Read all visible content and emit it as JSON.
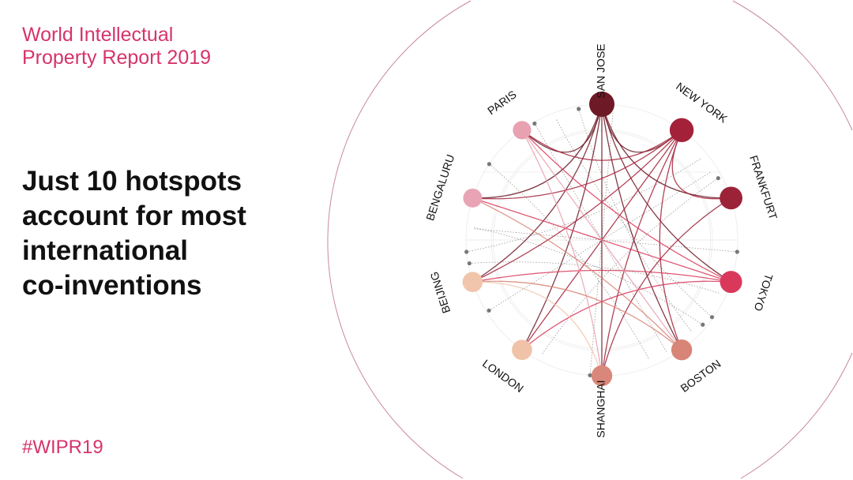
{
  "header": {
    "report_title_line1": "World Intellectual",
    "report_title_line2": "Property Report 2019"
  },
  "headline": {
    "line1": "Just 10 hotspots",
    "line2": "account for most",
    "line3": "international",
    "line4": "co-inventions"
  },
  "hashtag": "#WIPR19",
  "colors": {
    "brand": "#d6336c",
    "edge": "#9b2f45"
  },
  "network": {
    "nodes": [
      {
        "id": "sanjose",
        "label": "SAN JOSE",
        "weight": 1.0,
        "color": "#6e1a26"
      },
      {
        "id": "newyork",
        "label": "NEW YORK",
        "weight": 0.9,
        "color": "#a3223a"
      },
      {
        "id": "frankfurt",
        "label": "FRANKFURT",
        "weight": 0.8,
        "color": "#9c2238"
      },
      {
        "id": "tokyo",
        "label": "TOKYO",
        "weight": 0.75,
        "color": "#d9385a"
      },
      {
        "id": "boston",
        "label": "BOSTON",
        "weight": 0.65,
        "color": "#d88476"
      },
      {
        "id": "shanghai",
        "label": "SHANGHAI",
        "weight": 0.65,
        "color": "#d9877a"
      },
      {
        "id": "london",
        "label": "LONDON",
        "weight": 0.6,
        "color": "#f0c2a8"
      },
      {
        "id": "beijing",
        "label": "BEIJING",
        "weight": 0.6,
        "color": "#f1c5ab"
      },
      {
        "id": "bengaluru",
        "label": "BENGALURU",
        "weight": 0.5,
        "color": "#e8a4b5"
      },
      {
        "id": "paris",
        "label": "PARIS",
        "weight": 0.45,
        "color": "#e8a1b1"
      }
    ],
    "edges": [
      [
        "sanjose",
        "newyork"
      ],
      [
        "sanjose",
        "paris"
      ],
      [
        "sanjose",
        "bengaluru"
      ],
      [
        "sanjose",
        "frankfurt"
      ],
      [
        "sanjose",
        "tokyo"
      ],
      [
        "sanjose",
        "boston"
      ],
      [
        "sanjose",
        "shanghai"
      ],
      [
        "sanjose",
        "london"
      ],
      [
        "sanjose",
        "beijing"
      ],
      [
        "newyork",
        "paris"
      ],
      [
        "newyork",
        "frankfurt"
      ],
      [
        "newyork",
        "beijing"
      ],
      [
        "newyork",
        "london"
      ],
      [
        "newyork",
        "shanghai"
      ],
      [
        "newyork",
        "boston"
      ],
      [
        "newyork",
        "bengaluru"
      ],
      [
        "tokyo",
        "bengaluru"
      ],
      [
        "tokyo",
        "beijing"
      ],
      [
        "tokyo",
        "london"
      ],
      [
        "tokyo",
        "paris"
      ],
      [
        "frankfurt",
        "shanghai"
      ],
      [
        "paris",
        "boston"
      ],
      [
        "paris",
        "shanghai"
      ],
      [
        "boston",
        "bengaluru"
      ],
      [
        "boston",
        "beijing"
      ],
      [
        "beijing",
        "shanghai"
      ]
    ]
  }
}
